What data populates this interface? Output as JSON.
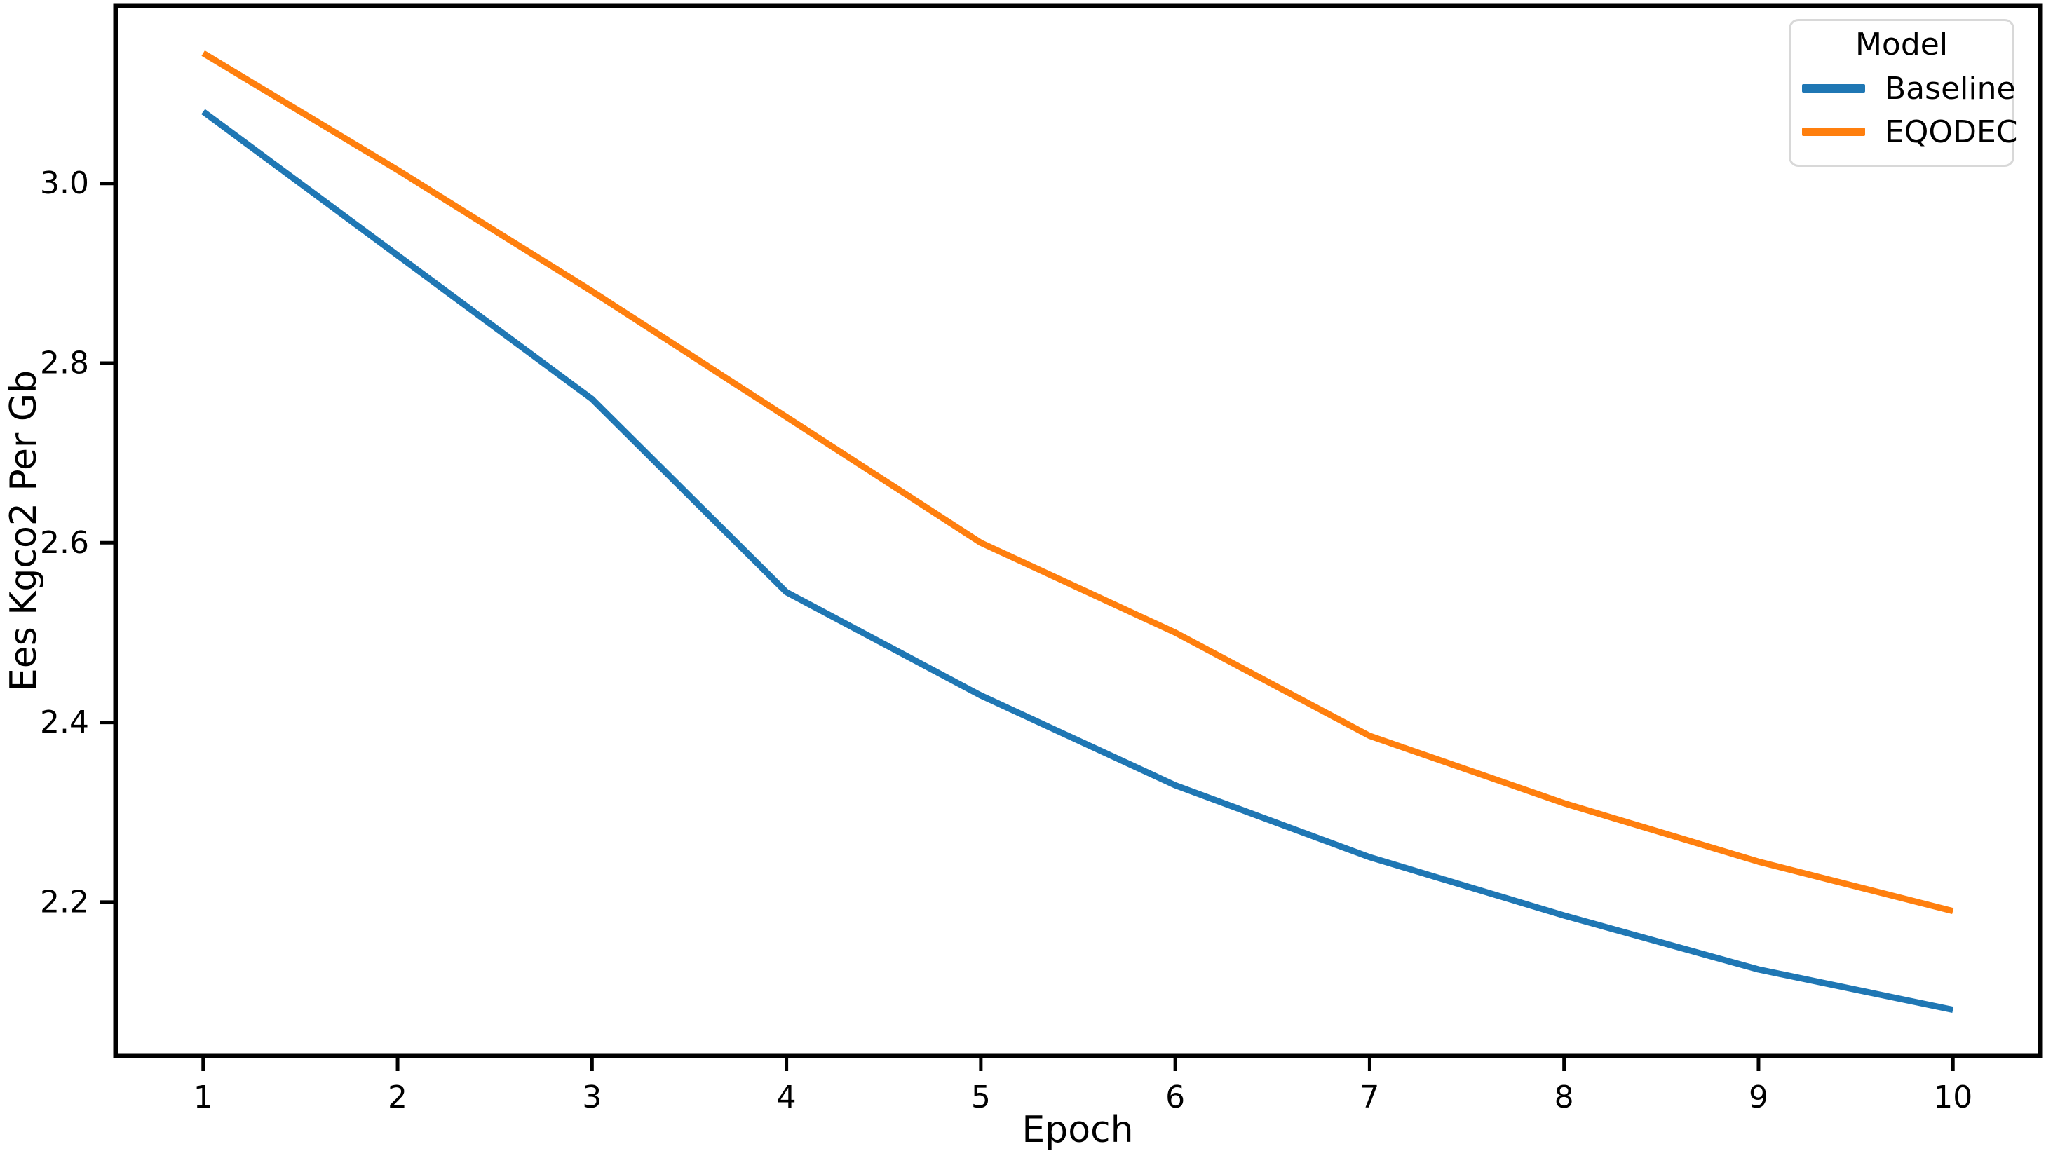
{
  "chart_data": {
    "type": "line",
    "title": "",
    "xlabel": "Epoch",
    "ylabel": "Ees Kgco2 Per Gb",
    "x": [
      1,
      2,
      3,
      4,
      5,
      6,
      7,
      8,
      9,
      10
    ],
    "xticks": [
      1,
      2,
      3,
      4,
      5,
      6,
      7,
      8,
      9,
      10
    ],
    "yticks": [
      2.2,
      2.4,
      2.6,
      2.8,
      3.0
    ],
    "xlim": [
      0.55,
      10.45
    ],
    "ylim": [
      2.029,
      3.198
    ],
    "grid": false,
    "legend": {
      "title": "Model",
      "position": "upper-right"
    },
    "series": [
      {
        "name": "Baseline",
        "color": "#1f77b4",
        "values": [
          3.08,
          2.92,
          2.76,
          2.545,
          2.43,
          2.33,
          2.25,
          2.185,
          2.125,
          2.08
        ]
      },
      {
        "name": "EQODEC",
        "color": "#ff7f0e",
        "values": [
          3.145,
          3.015,
          2.88,
          2.74,
          2.6,
          2.5,
          2.385,
          2.31,
          2.245,
          2.19
        ]
      }
    ]
  },
  "colors": {
    "axis": "#000000",
    "legend_border": "#d8d8d8",
    "background": "#ffffff"
  }
}
